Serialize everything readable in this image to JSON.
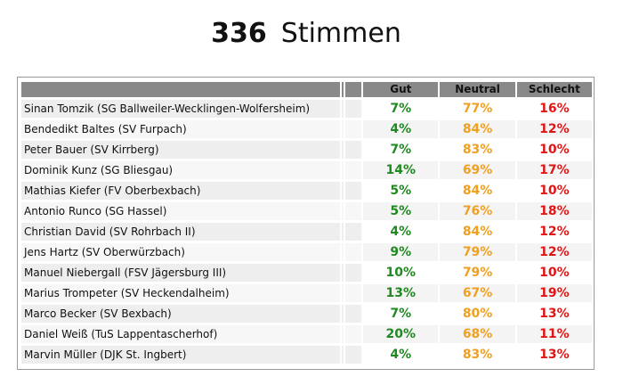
{
  "header": {
    "count": "336",
    "label": "Stimmen"
  },
  "table": {
    "columns": {
      "gut": "Gut",
      "neutral": "Neutral",
      "schlecht": "Schlecht"
    },
    "rows": [
      {
        "name": "Sinan Tomzik (SG Ballweiler-Wecklingen-Wolfersheim)",
        "gut": "7%",
        "neutral": "77%",
        "schlecht": "16%"
      },
      {
        "name": "Bendedikt Baltes (SV Furpach)",
        "gut": "4%",
        "neutral": "84%",
        "schlecht": "12%"
      },
      {
        "name": "Peter Bauer (SV Kirrberg)",
        "gut": "7%",
        "neutral": "83%",
        "schlecht": "10%"
      },
      {
        "name": "Dominik Kunz (SG Bliesgau)",
        "gut": "14%",
        "neutral": "69%",
        "schlecht": "17%"
      },
      {
        "name": "Mathias Kiefer (FV Oberbexbach)",
        "gut": "5%",
        "neutral": "84%",
        "schlecht": "10%"
      },
      {
        "name": "Antonio Runco (SG Hassel)",
        "gut": "5%",
        "neutral": "76%",
        "schlecht": "18%"
      },
      {
        "name": "Christian David (SV Rohrbach II)",
        "gut": "4%",
        "neutral": "84%",
        "schlecht": "12%"
      },
      {
        "name": "Jens Hartz (SV Oberwürzbach)",
        "gut": "9%",
        "neutral": "79%",
        "schlecht": "12%"
      },
      {
        "name": "Manuel Niebergall (FSV Jägersburg III)",
        "gut": "10%",
        "neutral": "79%",
        "schlecht": "10%"
      },
      {
        "name": "Marius Trompeter (SV Heckendalheim)",
        "gut": "13%",
        "neutral": "67%",
        "schlecht": "19%"
      },
      {
        "name": "Marco Becker (SV Bexbach)",
        "gut": "7%",
        "neutral": "80%",
        "schlecht": "13%"
      },
      {
        "name": "Daniel Weiß (TuS Lappentascherhof)",
        "gut": "20%",
        "neutral": "68%",
        "schlecht": "11%"
      },
      {
        "name": "Marvin Müller (DJK St. Ingbert)",
        "gut": "4%",
        "neutral": "83%",
        "schlecht": "13%"
      }
    ]
  },
  "colors": {
    "gut": "#1f8a1f",
    "neutral": "#f0a020",
    "schlecht": "#e01616",
    "header_bg": "#898989"
  }
}
